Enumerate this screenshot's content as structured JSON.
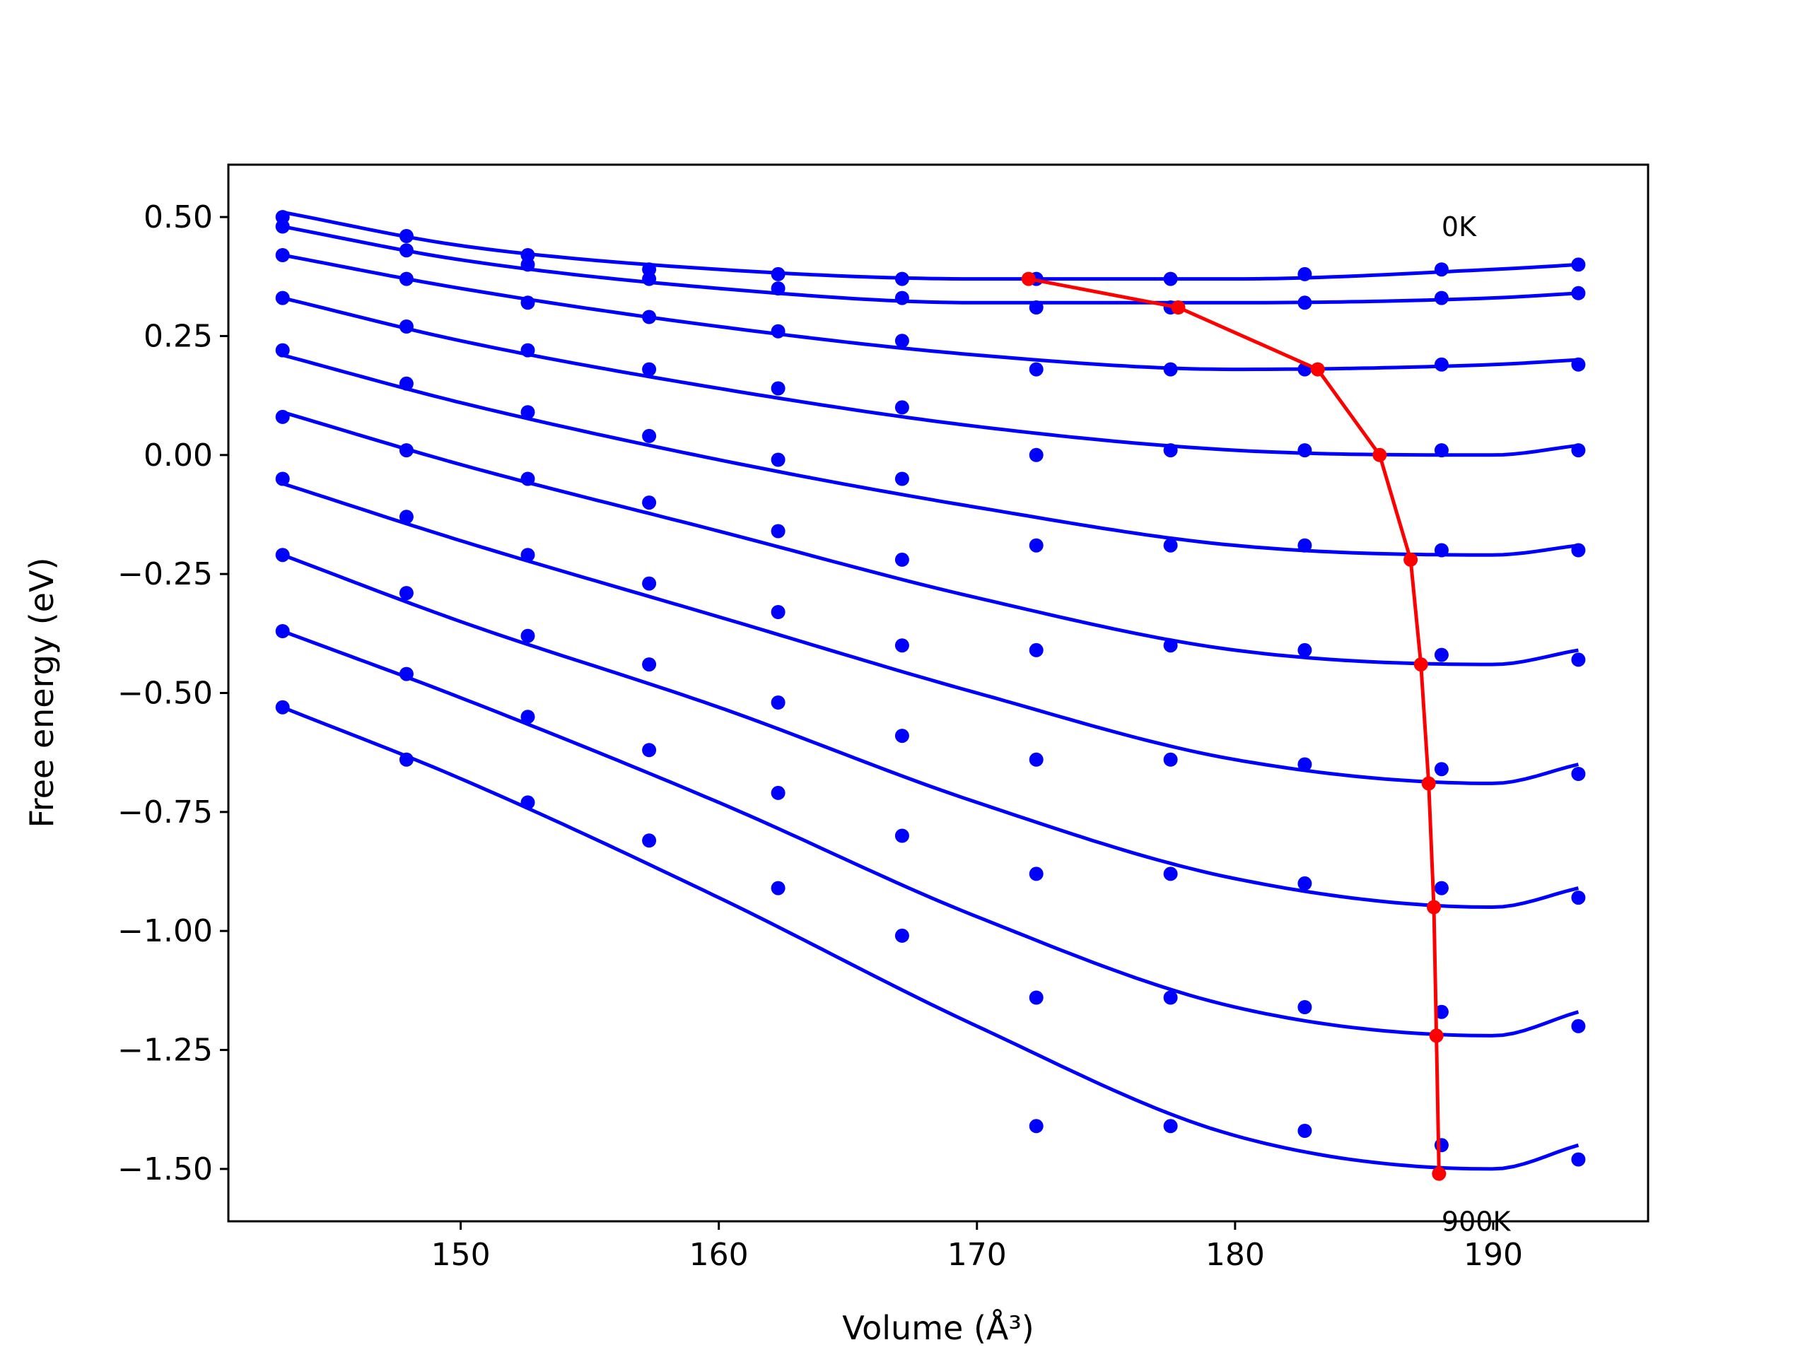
{
  "chart_data": {
    "type": "line",
    "xlabel": "Volume (Å³)",
    "ylabel": "Free energy (eV)",
    "xlim": [
      141,
      196
    ],
    "ylim": [
      -1.61,
      0.61
    ],
    "xticks": [
      150,
      160,
      170,
      180,
      190
    ],
    "yticks": [
      0.5,
      0.25,
      0.0,
      -0.25,
      -0.5,
      -0.75,
      -1.0,
      -1.25,
      -1.5
    ],
    "xtick_labels": [
      "150",
      "160",
      "170",
      "180",
      "190"
    ],
    "ytick_labels": [
      "0.50",
      "0.25",
      "0.00",
      "−0.25",
      "−0.50",
      "−0.75",
      "−1.00",
      "−1.25",
      "−1.50"
    ],
    "annotations": [
      {
        "text": "0K",
        "x": 188.0,
        "y": 0.46
      },
      {
        "text": "900K",
        "x": 188.0,
        "y": -1.63
      }
    ],
    "grid": false,
    "colors": {
      "fit": "#0000ff",
      "points": "#0000ff",
      "minimum_path": "#ff0000"
    },
    "x": [
      143.1,
      147.9,
      152.6,
      157.3,
      162.3,
      167.1,
      172.3,
      177.5,
      182.7,
      188.0,
      193.3
    ],
    "data_series": [
      {
        "values": [
          0.5,
          0.46,
          0.42,
          0.39,
          0.38,
          0.37,
          0.37,
          0.37,
          0.38,
          0.39,
          0.4
        ]
      },
      {
        "values": [
          0.48,
          0.43,
          0.4,
          0.37,
          0.35,
          0.33,
          0.31,
          0.31,
          0.32,
          0.33,
          0.34
        ]
      },
      {
        "values": [
          0.42,
          0.37,
          0.32,
          0.29,
          0.26,
          0.24,
          0.18,
          0.18,
          0.18,
          0.19,
          0.19
        ]
      },
      {
        "values": [
          0.33,
          0.27,
          0.22,
          0.18,
          0.14,
          0.1,
          0.0,
          0.01,
          0.01,
          0.01,
          0.01
        ]
      },
      {
        "values": [
          0.22,
          0.15,
          0.09,
          0.04,
          -0.01,
          -0.05,
          -0.19,
          -0.19,
          -0.19,
          -0.2,
          -0.2
        ]
      },
      {
        "values": [
          0.08,
          0.01,
          -0.05,
          -0.1,
          -0.16,
          -0.22,
          -0.41,
          -0.4,
          -0.41,
          -0.42,
          -0.43
        ]
      },
      {
        "values": [
          -0.05,
          -0.13,
          -0.21,
          -0.27,
          -0.33,
          -0.4,
          -0.64,
          -0.64,
          -0.65,
          -0.66,
          -0.67
        ]
      },
      {
        "values": [
          -0.21,
          -0.29,
          -0.38,
          -0.44,
          -0.52,
          -0.59,
          -0.88,
          -0.88,
          -0.9,
          -0.91,
          -0.93
        ]
      },
      {
        "values": [
          -0.37,
          -0.46,
          -0.55,
          -0.62,
          -0.71,
          -0.8,
          -1.14,
          -1.14,
          -1.16,
          -1.17,
          -1.2
        ]
      },
      {
        "values": [
          -0.53,
          -0.64,
          -0.73,
          -0.81,
          -0.91,
          -1.01,
          -1.41,
          -1.41,
          -1.42,
          -1.45,
          -1.48
        ]
      }
    ],
    "fit_series": [
      {
        "x_start": 143.1,
        "x_end": 193.3,
        "x": [
          143.1,
          150,
          160,
          170,
          180,
          190,
          193.3
        ],
        "values": [
          0.51,
          0.44,
          0.39,
          0.37,
          0.37,
          0.39,
          0.4
        ]
      },
      {
        "x_start": 143.1,
        "x_end": 193.3,
        "x": [
          143.1,
          150,
          160,
          170,
          180,
          190,
          193.3
        ],
        "values": [
          0.48,
          0.41,
          0.35,
          0.32,
          0.32,
          0.33,
          0.34
        ]
      },
      {
        "x_start": 143.1,
        "x_end": 193.3,
        "x": [
          143.1,
          150,
          160,
          170,
          180,
          190,
          193.3
        ],
        "values": [
          0.42,
          0.35,
          0.27,
          0.21,
          0.18,
          0.19,
          0.2
        ]
      },
      {
        "x_start": 143.1,
        "x_end": 193.3,
        "x": [
          143.1,
          150,
          160,
          170,
          180,
          190,
          193.3
        ],
        "values": [
          0.33,
          0.24,
          0.14,
          0.06,
          0.01,
          0.0,
          0.02
        ]
      },
      {
        "x_start": 143.1,
        "x_end": 193.3,
        "x": [
          143.1,
          150,
          160,
          170,
          180,
          190,
          193.3
        ],
        "values": [
          0.21,
          0.11,
          -0.01,
          -0.11,
          -0.19,
          -0.21,
          -0.19
        ]
      },
      {
        "x_start": 143.1,
        "x_end": 193.3,
        "x": [
          143.1,
          150,
          160,
          170,
          180,
          190,
          193.3
        ],
        "values": [
          0.09,
          -0.02,
          -0.16,
          -0.3,
          -0.41,
          -0.44,
          -0.41
        ]
      },
      {
        "x_start": 143.1,
        "x_end": 193.3,
        "x": [
          143.1,
          150,
          160,
          170,
          180,
          190,
          193.3
        ],
        "values": [
          -0.06,
          -0.18,
          -0.34,
          -0.5,
          -0.64,
          -0.69,
          -0.65
        ]
      },
      {
        "x_start": 143.1,
        "x_end": 193.3,
        "x": [
          143.1,
          150,
          160,
          170,
          180,
          190,
          193.3
        ],
        "values": [
          -0.21,
          -0.35,
          -0.53,
          -0.73,
          -0.89,
          -0.95,
          -0.91
        ]
      },
      {
        "x_start": 143.1,
        "x_end": 193.3,
        "x": [
          143.1,
          150,
          160,
          170,
          180,
          190,
          193.3
        ],
        "values": [
          -0.37,
          -0.51,
          -0.73,
          -0.97,
          -1.16,
          -1.22,
          -1.17
        ]
      },
      {
        "x_start": 143.1,
        "x_end": 193.3,
        "x": [
          143.1,
          150,
          160,
          170,
          180,
          190,
          193.3
        ],
        "values": [
          -0.53,
          -0.68,
          -0.93,
          -1.2,
          -1.43,
          -1.5,
          -1.45
        ]
      }
    ],
    "minimum_path": {
      "x": [
        172.0,
        177.8,
        183.2,
        185.6,
        186.8,
        187.2,
        187.5,
        187.7,
        187.8,
        187.9
      ],
      "values": [
        0.37,
        0.31,
        0.18,
        0.0,
        -0.22,
        -0.44,
        -0.69,
        -0.95,
        -1.22,
        -1.51
      ]
    }
  }
}
